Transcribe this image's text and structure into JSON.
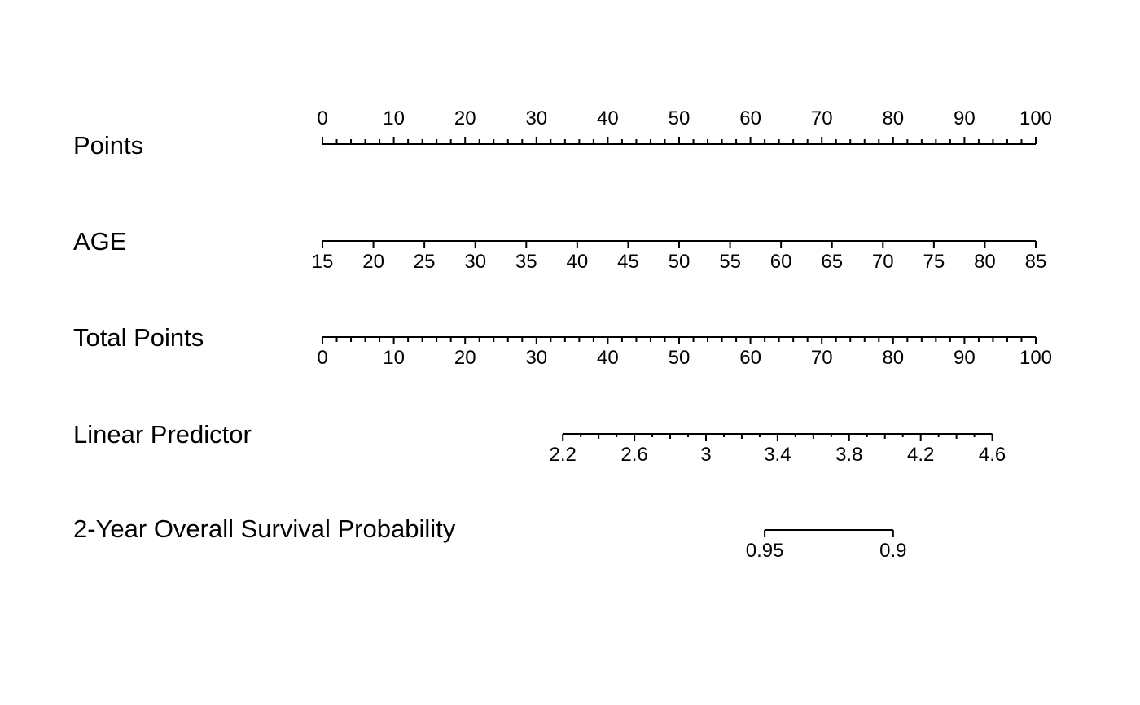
{
  "chart_data": {
    "type": "nomogram",
    "title": "",
    "rows": [
      {
        "name": "Points",
        "ticks": [
          0,
          10,
          20,
          30,
          40,
          50,
          60,
          70,
          80,
          90,
          100
        ],
        "tick_labels": [
          "0",
          "10",
          "20",
          "30",
          "40",
          "50",
          "60",
          "70",
          "80",
          "90",
          "100"
        ],
        "minor_ticks": [
          2,
          4,
          6,
          8,
          12,
          14,
          16,
          18,
          22,
          24,
          26,
          28,
          32,
          34,
          36,
          38,
          42,
          44,
          46,
          48,
          52,
          54,
          56,
          58,
          62,
          64,
          66,
          68,
          72,
          74,
          76,
          78,
          82,
          84,
          86,
          88,
          92,
          94,
          96,
          98
        ],
        "points_range": [
          0,
          100
        ],
        "labels_position": "above"
      },
      {
        "name": "AGE",
        "ticks": [
          15,
          20,
          25,
          30,
          35,
          40,
          45,
          50,
          55,
          60,
          65,
          70,
          75,
          80,
          85
        ],
        "tick_labels": [
          "15",
          "20",
          "25",
          "30",
          "35",
          "40",
          "45",
          "50",
          "55",
          "60",
          "65",
          "70",
          "75",
          "80",
          "85"
        ],
        "minor_ticks": [],
        "points_range": [
          0,
          100
        ],
        "labels_position": "below"
      },
      {
        "name": "Total Points",
        "ticks": [
          0,
          10,
          20,
          30,
          40,
          50,
          60,
          70,
          80,
          90,
          100
        ],
        "tick_labels": [
          "0",
          "10",
          "20",
          "30",
          "40",
          "50",
          "60",
          "70",
          "80",
          "90",
          "100"
        ],
        "minor_ticks": [
          2,
          4,
          6,
          8,
          12,
          14,
          16,
          18,
          22,
          24,
          26,
          28,
          32,
          34,
          36,
          38,
          42,
          44,
          46,
          48,
          52,
          54,
          56,
          58,
          62,
          64,
          66,
          68,
          72,
          74,
          76,
          78,
          82,
          84,
          86,
          88,
          92,
          94,
          96,
          98
        ],
        "points_range": [
          0,
          100
        ],
        "labels_position": "below"
      },
      {
        "name": "Linear Predictor",
        "ticks": [
          2.2,
          2.6,
          3,
          3.4,
          3.8,
          4.2,
          4.6
        ],
        "tick_labels": [
          "2.2",
          "2.6",
          "3",
          "3.4",
          "3.8",
          "4.2",
          "4.6"
        ],
        "minor_ticks": [
          2.4,
          2.8,
          3.2,
          3.6,
          4.0,
          4.4
        ],
        "micro_ticks": [
          2.3,
          2.5,
          2.7,
          2.9,
          3.1,
          3.3,
          3.5,
          3.7,
          3.9,
          4.1,
          4.3,
          4.5
        ],
        "points_range": [
          33.7,
          93.9
        ],
        "labels_position": "below"
      },
      {
        "name": "2-Year Overall Survival Probability",
        "ticks": [
          0.95,
          0.9
        ],
        "tick_labels": [
          "0.95",
          "0.9"
        ],
        "minor_ticks": [],
        "points_range": [
          62,
          80
        ],
        "labels_position": "below"
      }
    ]
  }
}
